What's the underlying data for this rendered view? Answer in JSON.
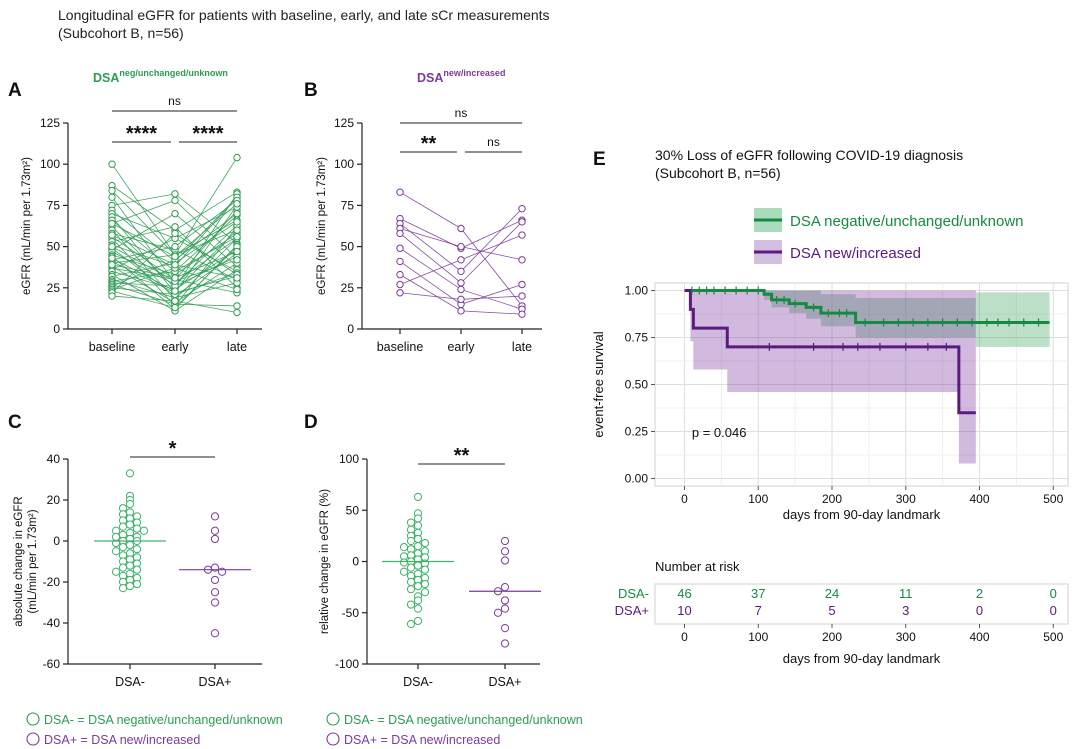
{
  "figure": {
    "title_line1": "Longitudinal eGFR for patients with baseline, early, and late sCr measurements",
    "title_line2": "(Subcohort B, n=56)"
  },
  "colors": {
    "green": "#2e9b52",
    "green_light": "#3db36a",
    "purple": "#7b3a9e",
    "purple_dark": "#5b1a80",
    "green_km": "#178a42"
  },
  "legend_bottom": {
    "green_text": "DSA- = DSA negative/unchanged/unknown",
    "purple_text": "DSA+ = DSA new/increased"
  },
  "chart_data": [
    {
      "id": "A",
      "panel_label": "A",
      "type": "line",
      "title_base": "DSA",
      "title_sup": "neg/unchanged/unknown",
      "ylabel": "eGFR (mL/min per 1.73m²)",
      "categories": [
        "baseline",
        "early",
        "late"
      ],
      "ylim": [
        0,
        125
      ],
      "yticks": [
        0,
        25,
        50,
        75,
        100,
        125
      ],
      "comparisons": [
        {
          "from": 0,
          "to": 2,
          "label": "ns"
        },
        {
          "from": 0,
          "to": 1,
          "label": "****"
        },
        {
          "from": 1,
          "to": 2,
          "label": "****"
        }
      ],
      "series": [
        {
          "values": [
            100,
            45,
            60
          ]
        },
        {
          "values": [
            87,
            60,
            83
          ]
        },
        {
          "values": [
            84,
            45,
            104
          ]
        },
        {
          "values": [
            80,
            28,
            55
          ]
        },
        {
          "values": [
            75,
            82,
            52
          ]
        },
        {
          "values": [
            72,
            41,
            80
          ]
        },
        {
          "values": [
            70,
            55,
            35
          ]
        },
        {
          "values": [
            68,
            22,
            75
          ]
        },
        {
          "values": [
            66,
            35,
            69
          ]
        },
        {
          "values": [
            64,
            78,
            43
          ]
        },
        {
          "values": [
            62,
            25,
            82
          ]
        },
        {
          "values": [
            60,
            18,
            55
          ]
        },
        {
          "values": [
            58,
            48,
            30
          ]
        },
        {
          "values": [
            56,
            30,
            72
          ]
        },
        {
          "values": [
            55,
            14,
            62
          ]
        },
        {
          "values": [
            53,
            62,
            25
          ]
        },
        {
          "values": [
            51,
            38,
            80
          ]
        },
        {
          "values": [
            49,
            20,
            46
          ]
        },
        {
          "values": [
            48,
            70,
            38
          ]
        },
        {
          "values": [
            47,
            27,
            63
          ]
        },
        {
          "values": [
            45,
            33,
            58
          ]
        },
        {
          "values": [
            44,
            12,
            51
          ]
        },
        {
          "values": [
            42,
            50,
            78
          ]
        },
        {
          "values": [
            41,
            22,
            32
          ]
        },
        {
          "values": [
            40,
            45,
            66
          ]
        },
        {
          "values": [
            38,
            16,
            40
          ]
        },
        {
          "values": [
            37,
            30,
            22
          ]
        },
        {
          "values": [
            36,
            55,
            74
          ]
        },
        {
          "values": [
            35,
            24,
            48
          ]
        },
        {
          "values": [
            33,
            11,
            36
          ]
        },
        {
          "values": [
            32,
            40,
            65
          ]
        },
        {
          "values": [
            30,
            19,
            28
          ]
        },
        {
          "values": [
            29,
            35,
            56
          ]
        },
        {
          "values": [
            28,
            26,
            44
          ]
        },
        {
          "values": [
            27,
            15,
            14
          ]
        },
        {
          "values": [
            26,
            42,
            70
          ]
        },
        {
          "values": [
            25,
            21,
            34
          ]
        },
        {
          "values": [
            24,
            37,
            24
          ]
        },
        {
          "values": [
            23,
            13,
            50
          ]
        },
        {
          "values": [
            22,
            58,
            33
          ]
        },
        {
          "values": [
            20,
            17,
            10
          ]
        },
        {
          "values": [
            50,
            29,
            42
          ]
        },
        {
          "values": [
            64,
            44,
            76
          ]
        },
        {
          "values": [
            57,
            39,
            31
          ]
        },
        {
          "values": [
            43,
            23,
            60
          ]
        },
        {
          "values": [
            39,
            31,
            47
          ]
        }
      ]
    },
    {
      "id": "B",
      "panel_label": "B",
      "type": "line",
      "title_base": "DSA",
      "title_sup": "new/increased",
      "ylabel": "eGFR (mL/min per 1.73m²)",
      "categories": [
        "baseline",
        "early",
        "late"
      ],
      "ylim": [
        0,
        125
      ],
      "yticks": [
        0,
        25,
        50,
        75,
        100,
        125
      ],
      "comparisons": [
        {
          "from": 0,
          "to": 2,
          "label": "ns"
        },
        {
          "from": 0,
          "to": 1,
          "label": "**"
        },
        {
          "from": 1,
          "to": 2,
          "label": "ns"
        }
      ],
      "series": [
        {
          "values": [
            83,
            61,
            14
          ]
        },
        {
          "values": [
            67,
            49,
            66
          ]
        },
        {
          "values": [
            64,
            35,
            73
          ]
        },
        {
          "values": [
            61,
            50,
            42
          ]
        },
        {
          "values": [
            58,
            28,
            65
          ]
        },
        {
          "values": [
            49,
            24,
            12
          ]
        },
        {
          "values": [
            41,
            15,
            27
          ]
        },
        {
          "values": [
            33,
            11,
            9
          ]
        },
        {
          "values": [
            22,
            18,
            20
          ]
        },
        {
          "values": [
            27,
            42,
            57
          ]
        }
      ]
    },
    {
      "id": "C",
      "panel_label": "C",
      "type": "scatter",
      "ylabel": "absolute change in eGFR (mL/min per 1.73m²)",
      "categories": [
        "DSA-",
        "DSA+"
      ],
      "ylim": [
        -60,
        40
      ],
      "yticks": [
        -60,
        -40,
        -20,
        0,
        20,
        40
      ],
      "medians": [
        0,
        -14
      ],
      "comparison": {
        "from": 0,
        "to": 1,
        "label": "*"
      },
      "groups": [
        {
          "name": "DSA-",
          "values": [
            33,
            22,
            20,
            18,
            16,
            14,
            13,
            12,
            11,
            10,
            9,
            8,
            7,
            6,
            5,
            5,
            4,
            3,
            2,
            1,
            0,
            0,
            -1,
            -2,
            -3,
            -4,
            -5,
            -6,
            -7,
            -8,
            -9,
            -10,
            -11,
            -12,
            -13,
            -14,
            -15,
            -16,
            -17,
            -18,
            -19,
            -20,
            -21,
            -22,
            -23,
            2
          ]
        },
        {
          "name": "DSA+",
          "values": [
            12,
            5,
            1,
            -13,
            -14,
            -15,
            -19,
            -25,
            -45,
            -30
          ]
        }
      ]
    },
    {
      "id": "D",
      "panel_label": "D",
      "type": "scatter",
      "ylabel": "relative change in eGFR (%)",
      "categories": [
        "DSA-",
        "DSA+"
      ],
      "ylim": [
        -100,
        100
      ],
      "yticks": [
        -100,
        -50,
        0,
        50,
        100
      ],
      "medians": [
        0,
        -29
      ],
      "comparison": {
        "from": 0,
        "to": 1,
        "label": "**"
      },
      "groups": [
        {
          "name": "DSA-",
          "values": [
            63,
            47,
            42,
            38,
            35,
            31,
            28,
            25,
            22,
            20,
            18,
            15,
            12,
            10,
            8,
            6,
            4,
            2,
            0,
            -2,
            -4,
            -6,
            -8,
            -10,
            -12,
            -14,
            -16,
            -18,
            -20,
            -22,
            -24,
            -27,
            -30,
            -34,
            -38,
            -42,
            -46,
            -58,
            -61,
            5,
            -1,
            14
          ]
        },
        {
          "name": "DSA+",
          "values": [
            20,
            10,
            1,
            -25,
            -29,
            -38,
            -46,
            -50,
            -65,
            -80
          ]
        }
      ]
    },
    {
      "id": "E",
      "panel_label": "E",
      "type": "line",
      "subtype": "kaplan-meier",
      "title": "30% Loss of eGFR following COVID-19 diagnosis",
      "subtitle": "(Subcohort B, n=56)",
      "xlabel": "days from 90-day landmark",
      "ylabel": "event-free survival",
      "xlim": [
        -40,
        520
      ],
      "ylim": [
        -0.04,
        1.04
      ],
      "xticks": [
        0,
        100,
        200,
        300,
        400,
        500
      ],
      "yticks": [
        0.0,
        0.25,
        0.5,
        0.75,
        1.0
      ],
      "annotation": "p = 0.046",
      "legend": [
        "DSA negative/unchanged/unknown",
        "DSA new/increased"
      ],
      "series": [
        {
          "name": "DSA negative/unchanged/unknown",
          "x": [
            0,
            108,
            118,
            142,
            165,
            185,
            232,
            395,
            495
          ],
          "y": [
            1.0,
            0.98,
            0.95,
            0.93,
            0.91,
            0.88,
            0.83,
            0.83,
            0.83
          ],
          "lower": [
            1.0,
            0.95,
            0.91,
            0.88,
            0.85,
            0.81,
            0.75,
            0.7,
            0.7
          ],
          "upper": [
            1.0,
            1.0,
            1.0,
            1.0,
            1.0,
            0.98,
            0.96,
            0.99,
            0.99
          ],
          "censor_x": [
            10,
            20,
            30,
            40,
            55,
            70,
            85,
            100,
            125,
            135,
            150,
            175,
            195,
            210,
            220,
            245,
            270,
            290,
            310,
            330,
            350,
            370,
            390,
            410,
            425,
            440,
            460,
            480
          ]
        },
        {
          "name": "DSA new/increased",
          "x": [
            0,
            8,
            12,
            58,
            372,
            395
          ],
          "y": [
            1.0,
            0.9,
            0.8,
            0.7,
            0.35,
            0.35
          ],
          "lower": [
            1.0,
            0.73,
            0.58,
            0.46,
            0.08,
            0.08
          ],
          "upper": [
            1.0,
            1.0,
            1.0,
            1.0,
            1.0,
            1.0
          ],
          "censor_x": [
            115,
            175,
            215,
            235,
            265,
            300,
            330,
            355
          ]
        }
      ],
      "risk_table": {
        "title": "Number at risk",
        "xlabel": "days from 90-day landmark",
        "rows": [
          {
            "label": "DSA-",
            "counts": [
              46,
              37,
              24,
              11,
              2,
              0
            ]
          },
          {
            "label": "DSA+",
            "counts": [
              10,
              7,
              5,
              3,
              0,
              0
            ]
          }
        ]
      }
    }
  ]
}
